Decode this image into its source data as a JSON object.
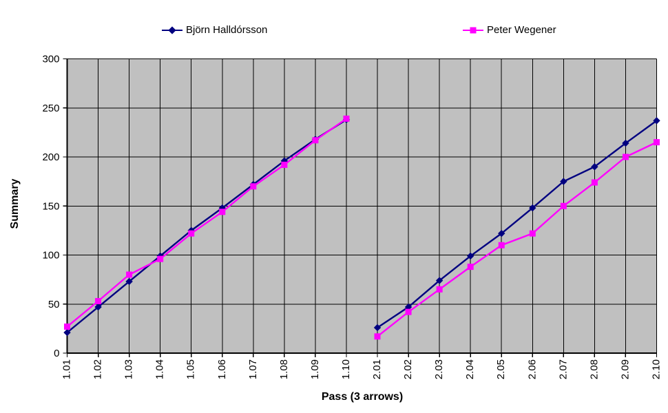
{
  "chart_data": {
    "type": "line",
    "title": "",
    "xlabel": "Pass (3 arrows)",
    "ylabel": "Summary",
    "ylim": [
      0,
      300
    ],
    "yticks": [
      0,
      50,
      100,
      150,
      200,
      250,
      300
    ],
    "grid": true,
    "legend_position": "top",
    "plot_bg": "#C0C0C0",
    "grid_color": "#000000",
    "categories": [
      "1.01",
      "1.02",
      "1.03",
      "1.04",
      "1.05",
      "1.06",
      "1.07",
      "1.08",
      "1.09",
      "1.10",
      "2.01",
      "2.02",
      "2.03",
      "2.04",
      "2.05",
      "2.06",
      "2.07",
      "2.08",
      "2.09",
      "2.10"
    ],
    "gap_after_index": 9,
    "series": [
      {
        "name": "Björn Halldórsson",
        "color": "#000080",
        "marker": "diamond",
        "values": [
          21,
          47,
          73,
          99,
          125,
          148,
          172,
          196,
          218,
          238,
          26,
          47,
          74,
          99,
          122,
          148,
          175,
          190,
          214,
          237
        ]
      },
      {
        "name": "Peter Wegener",
        "color": "#FF00FF",
        "marker": "square",
        "values": [
          27,
          53,
          80,
          96,
          122,
          144,
          170,
          192,
          217,
          239,
          17,
          42,
          65,
          88,
          110,
          122,
          150,
          174,
          200,
          215
        ]
      }
    ]
  }
}
